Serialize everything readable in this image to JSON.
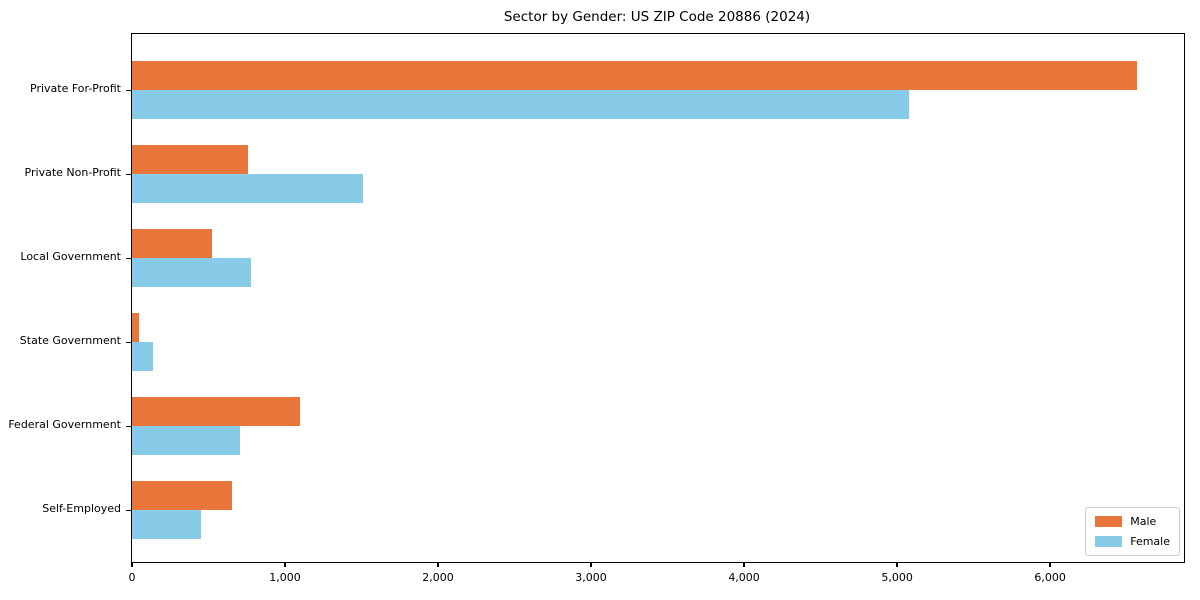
{
  "chart_data": {
    "type": "bar",
    "orientation": "horizontal",
    "title": "Sector by Gender: US ZIP Code 20886 (2024)",
    "categories": [
      "Private For-Profit",
      "Private Non-Profit",
      "Local Government",
      "State Government",
      "Federal Government",
      "Self-Employed"
    ],
    "series": [
      {
        "name": "Male",
        "color": "#E8763B",
        "values": [
          6570,
          755,
          520,
          45,
          1100,
          655
        ]
      },
      {
        "name": "Female",
        "color": "#87CBE8",
        "values": [
          5080,
          1510,
          780,
          135,
          705,
          450
        ]
      }
    ],
    "xlabel": "",
    "ylabel": "",
    "xlim": [
      0,
      6875
    ],
    "xticks": [
      0,
      1000,
      2000,
      3000,
      4000,
      5000,
      6000
    ],
    "xtick_labels": [
      "0",
      "1,000",
      "2,000",
      "3,000",
      "4,000",
      "5,000",
      "6,000"
    ],
    "grid": false,
    "legend": {
      "position": "lower right",
      "entries": [
        "Male",
        "Female"
      ]
    }
  }
}
